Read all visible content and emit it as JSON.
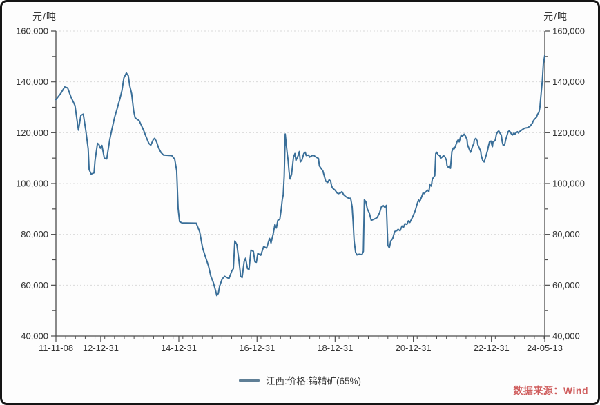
{
  "header": {
    "left_unit": "元/吨",
    "right_unit": "元/吨"
  },
  "legend": {
    "label": "江西:价格:钨精矿(65%)"
  },
  "source": {
    "label": "数据来源：Wind"
  },
  "colors": {
    "line": "#3a6f99",
    "legend_line": "#5f7f96",
    "grid": "#d9d9d9",
    "axis": "#4d4d4d",
    "tick_label": "#333333",
    "source_text": "#cf5d5d",
    "background": "#fdfdfd",
    "border": "#151515"
  },
  "chart_data": {
    "type": "line",
    "title": "",
    "ylabel": "元/吨",
    "legend_position": "bottom-center",
    "grid": "horizontal-dotted",
    "y_axis": {
      "min": 40000,
      "max": 160000,
      "major_step": 20000,
      "minor_step": 10000,
      "tick_labels": [
        "40,000",
        "60,000",
        "80,000",
        "100,000",
        "120,000",
        "140,000",
        "160,000"
      ]
    },
    "x_axis": {
      "start_date": "2011-11-08",
      "end_date": "2024-05-13",
      "minor_tick_every_months": 3,
      "total_months": 150.2,
      "ticks": [
        {
          "label": "11-11-08",
          "t": 0.0
        },
        {
          "label": "12-12-31",
          "t": 0.0917
        },
        {
          "label": "14-12-31",
          "t": 0.2514
        },
        {
          "label": "16-12-31",
          "t": 0.4114
        },
        {
          "label": "18-12-31",
          "t": 0.5711
        },
        {
          "label": "20-12-31",
          "t": 0.7311
        },
        {
          "label": "22-12-31",
          "t": 0.8908
        },
        {
          "label": "24-05-13",
          "t": 1.0
        }
      ]
    },
    "series": [
      {
        "name": "江西:价格:钨精矿(65%)",
        "color": "#3a6f99",
        "points": [
          [
            0.0,
            133000
          ],
          [
            0.01,
            135500
          ],
          [
            0.018,
            138000
          ],
          [
            0.024,
            137600
          ],
          [
            0.031,
            134000
          ],
          [
            0.039,
            130700
          ],
          [
            0.046,
            121000
          ],
          [
            0.051,
            126800
          ],
          [
            0.056,
            127300
          ],
          [
            0.061,
            121000
          ],
          [
            0.066,
            113700
          ],
          [
            0.068,
            105500
          ],
          [
            0.072,
            103700
          ],
          [
            0.078,
            104200
          ],
          [
            0.08,
            109000
          ],
          [
            0.085,
            115800
          ],
          [
            0.088,
            115300
          ],
          [
            0.091,
            113900
          ],
          [
            0.094,
            115000
          ],
          [
            0.099,
            110000
          ],
          [
            0.104,
            109700
          ],
          [
            0.11,
            117200
          ],
          [
            0.113,
            120000
          ],
          [
            0.117,
            123400
          ],
          [
            0.12,
            126100
          ],
          [
            0.125,
            129300
          ],
          [
            0.131,
            133400
          ],
          [
            0.135,
            136600
          ],
          [
            0.139,
            141500
          ],
          [
            0.144,
            143500
          ],
          [
            0.148,
            142400
          ],
          [
            0.151,
            138500
          ],
          [
            0.155,
            135300
          ],
          [
            0.159,
            128500
          ],
          [
            0.162,
            125900
          ],
          [
            0.166,
            125300
          ],
          [
            0.17,
            124800
          ],
          [
            0.174,
            123200
          ],
          [
            0.18,
            120700
          ],
          [
            0.184,
            118600
          ],
          [
            0.19,
            115800
          ],
          [
            0.194,
            115100
          ],
          [
            0.199,
            117200
          ],
          [
            0.202,
            117800
          ],
          [
            0.206,
            116400
          ],
          [
            0.21,
            114000
          ],
          [
            0.215,
            112200
          ],
          [
            0.22,
            111200
          ],
          [
            0.237,
            111000
          ],
          [
            0.243,
            109600
          ],
          [
            0.247,
            105000
          ],
          [
            0.25,
            90100
          ],
          [
            0.253,
            85000
          ],
          [
            0.258,
            84500
          ],
          [
            0.287,
            84400
          ],
          [
            0.294,
            81000
          ],
          [
            0.3,
            74700
          ],
          [
            0.306,
            71100
          ],
          [
            0.312,
            67600
          ],
          [
            0.317,
            63500
          ],
          [
            0.322,
            61000
          ],
          [
            0.327,
            57600
          ],
          [
            0.329,
            55900
          ],
          [
            0.332,
            56700
          ],
          [
            0.335,
            59700
          ],
          [
            0.34,
            62400
          ],
          [
            0.345,
            63500
          ],
          [
            0.354,
            62600
          ],
          [
            0.36,
            65700
          ],
          [
            0.363,
            66500
          ],
          [
            0.366,
            77400
          ],
          [
            0.37,
            76000
          ],
          [
            0.374,
            70300
          ],
          [
            0.378,
            63500
          ],
          [
            0.381,
            63000
          ],
          [
            0.385,
            69200
          ],
          [
            0.388,
            70600
          ],
          [
            0.392,
            66500
          ],
          [
            0.395,
            66200
          ],
          [
            0.399,
            73800
          ],
          [
            0.404,
            73300
          ],
          [
            0.407,
            69200
          ],
          [
            0.41,
            69000
          ],
          [
            0.413,
            72500
          ],
          [
            0.419,
            71800
          ],
          [
            0.425,
            75200
          ],
          [
            0.431,
            74600
          ],
          [
            0.437,
            78400
          ],
          [
            0.44,
            76600
          ],
          [
            0.444,
            79800
          ],
          [
            0.448,
            83900
          ],
          [
            0.451,
            82500
          ],
          [
            0.454,
            85500
          ],
          [
            0.458,
            86000
          ],
          [
            0.461,
            90100
          ],
          [
            0.463,
            93600
          ],
          [
            0.465,
            95500
          ],
          [
            0.467,
            102800
          ],
          [
            0.469,
            119500
          ],
          [
            0.473,
            112000
          ],
          [
            0.475,
            109100
          ],
          [
            0.477,
            104500
          ],
          [
            0.479,
            101800
          ],
          [
            0.482,
            103600
          ],
          [
            0.486,
            110400
          ],
          [
            0.489,
            111800
          ],
          [
            0.491,
            109100
          ],
          [
            0.496,
            111200
          ],
          [
            0.498,
            112600
          ],
          [
            0.5,
            108500
          ],
          [
            0.503,
            109100
          ],
          [
            0.507,
            111800
          ],
          [
            0.51,
            112300
          ],
          [
            0.512,
            111000
          ],
          [
            0.517,
            111200
          ],
          [
            0.519,
            110400
          ],
          [
            0.524,
            111000
          ],
          [
            0.528,
            111000
          ],
          [
            0.532,
            110400
          ],
          [
            0.537,
            109900
          ],
          [
            0.539,
            106900
          ],
          [
            0.543,
            105800
          ],
          [
            0.546,
            105000
          ],
          [
            0.552,
            100900
          ],
          [
            0.556,
            100400
          ],
          [
            0.559,
            101500
          ],
          [
            0.562,
            100900
          ],
          [
            0.564,
            99000
          ],
          [
            0.566,
            98200
          ],
          [
            0.571,
            97400
          ],
          [
            0.575,
            96300
          ],
          [
            0.578,
            96000
          ],
          [
            0.582,
            96300
          ],
          [
            0.585,
            96800
          ],
          [
            0.589,
            95500
          ],
          [
            0.594,
            94700
          ],
          [
            0.599,
            94200
          ],
          [
            0.603,
            94200
          ],
          [
            0.606,
            90900
          ],
          [
            0.608,
            84700
          ],
          [
            0.61,
            77400
          ],
          [
            0.613,
            73000
          ],
          [
            0.616,
            71900
          ],
          [
            0.62,
            72200
          ],
          [
            0.626,
            72000
          ],
          [
            0.629,
            73300
          ],
          [
            0.631,
            93600
          ],
          [
            0.634,
            92800
          ],
          [
            0.637,
            90000
          ],
          [
            0.641,
            88500
          ],
          [
            0.645,
            85500
          ],
          [
            0.651,
            86000
          ],
          [
            0.657,
            86600
          ],
          [
            0.662,
            88500
          ],
          [
            0.666,
            90900
          ],
          [
            0.669,
            91400
          ],
          [
            0.673,
            90600
          ],
          [
            0.676,
            91400
          ],
          [
            0.679,
            75700
          ],
          [
            0.682,
            74700
          ],
          [
            0.685,
            77400
          ],
          [
            0.689,
            78400
          ],
          [
            0.693,
            81100
          ],
          [
            0.697,
            81400
          ],
          [
            0.7,
            82000
          ],
          [
            0.704,
            81400
          ],
          [
            0.708,
            83300
          ],
          [
            0.711,
            82800
          ],
          [
            0.714,
            84200
          ],
          [
            0.718,
            83900
          ],
          [
            0.721,
            85300
          ],
          [
            0.724,
            84700
          ],
          [
            0.727,
            85800
          ],
          [
            0.729,
            86600
          ],
          [
            0.731,
            87400
          ],
          [
            0.735,
            89300
          ],
          [
            0.739,
            92000
          ],
          [
            0.742,
            93600
          ],
          [
            0.744,
            92800
          ],
          [
            0.748,
            94700
          ],
          [
            0.751,
            96300
          ],
          [
            0.753,
            96000
          ],
          [
            0.757,
            96800
          ],
          [
            0.76,
            97400
          ],
          [
            0.763,
            96800
          ],
          [
            0.765,
            99500
          ],
          [
            0.768,
            99000
          ],
          [
            0.77,
            101800
          ],
          [
            0.772,
            102300
          ],
          [
            0.775,
            103100
          ],
          [
            0.777,
            111800
          ],
          [
            0.779,
            112300
          ],
          [
            0.782,
            111200
          ],
          [
            0.785,
            111000
          ],
          [
            0.787,
            109900
          ],
          [
            0.79,
            110400
          ],
          [
            0.793,
            111000
          ],
          [
            0.796,
            110400
          ],
          [
            0.799,
            109100
          ],
          [
            0.8,
            107100
          ],
          [
            0.803,
            106300
          ],
          [
            0.805,
            106900
          ],
          [
            0.807,
            106000
          ],
          [
            0.81,
            112600
          ],
          [
            0.813,
            114000
          ],
          [
            0.815,
            113700
          ],
          [
            0.817,
            114500
          ],
          [
            0.821,
            116700
          ],
          [
            0.823,
            117200
          ],
          [
            0.825,
            116400
          ],
          [
            0.827,
            117800
          ],
          [
            0.829,
            119100
          ],
          [
            0.831,
            118600
          ],
          [
            0.834,
            119100
          ],
          [
            0.835,
            119400
          ],
          [
            0.838,
            118600
          ],
          [
            0.841,
            117200
          ],
          [
            0.842,
            115300
          ],
          [
            0.845,
            113700
          ],
          [
            0.848,
            112300
          ],
          [
            0.849,
            112600
          ],
          [
            0.852,
            114500
          ],
          [
            0.855,
            115800
          ],
          [
            0.856,
            117200
          ],
          [
            0.859,
            117800
          ],
          [
            0.862,
            116700
          ],
          [
            0.863,
            115300
          ],
          [
            0.866,
            114000
          ],
          [
            0.869,
            112600
          ],
          [
            0.87,
            111000
          ],
          [
            0.873,
            109100
          ],
          [
            0.876,
            108500
          ],
          [
            0.877,
            109100
          ],
          [
            0.88,
            111000
          ],
          [
            0.883,
            113100
          ],
          [
            0.885,
            115000
          ],
          [
            0.887,
            116400
          ],
          [
            0.89,
            116700
          ],
          [
            0.891,
            115800
          ],
          [
            0.893,
            114500
          ],
          [
            0.894,
            116400
          ],
          [
            0.897,
            116700
          ],
          [
            0.899,
            117200
          ],
          [
            0.901,
            119400
          ],
          [
            0.904,
            120400
          ],
          [
            0.906,
            120700
          ],
          [
            0.908,
            119900
          ],
          [
            0.911,
            119100
          ],
          [
            0.913,
            116400
          ],
          [
            0.915,
            115000
          ],
          [
            0.918,
            115300
          ],
          [
            0.92,
            117200
          ],
          [
            0.923,
            119100
          ],
          [
            0.925,
            120400
          ],
          [
            0.927,
            120700
          ],
          [
            0.929,
            120400
          ],
          [
            0.932,
            119400
          ],
          [
            0.934,
            119100
          ],
          [
            0.937,
            119900
          ],
          [
            0.939,
            119400
          ],
          [
            0.941,
            119900
          ],
          [
            0.944,
            120400
          ],
          [
            0.946,
            119900
          ],
          [
            0.948,
            120400
          ],
          [
            0.954,
            121200
          ],
          [
            0.959,
            121800
          ],
          [
            0.965,
            122000
          ],
          [
            0.97,
            122600
          ],
          [
            0.972,
            123100
          ],
          [
            0.975,
            123900
          ],
          [
            0.976,
            124500
          ],
          [
            0.979,
            125300
          ],
          [
            0.983,
            126100
          ],
          [
            0.985,
            127200
          ],
          [
            0.988,
            128000
          ],
          [
            0.99,
            129900
          ],
          [
            0.992,
            134200
          ],
          [
            0.995,
            140700
          ],
          [
            0.997,
            147000
          ],
          [
            1.0,
            150500
          ]
        ]
      }
    ]
  }
}
